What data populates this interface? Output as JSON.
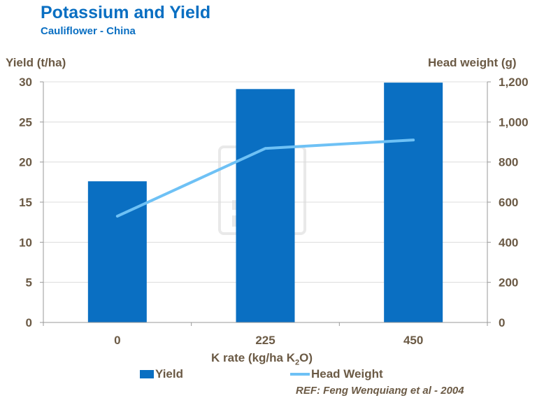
{
  "title": "Potassium and Yield",
  "subtitle": "Cauliflower - China",
  "reference": "REF: Feng Wenquiang et al - 2004",
  "colors": {
    "title": "#0a6fc2",
    "bar": "#0a6fc2",
    "line": "#6ec1f5",
    "text": "#6b5a45"
  },
  "chart_data": {
    "type": "bar",
    "title": "Potassium and Yield",
    "subtitle": "Cauliflower - China",
    "categories": [
      "0",
      "225",
      "450"
    ],
    "xlabel": {
      "main": "K rate (kg/ha K",
      "sub": "2",
      "end": "O)"
    },
    "ylabel": "Yield (t/ha)",
    "y2label": "Head weight (g)",
    "ylim": [
      0,
      30
    ],
    "y2lim": [
      0,
      1200
    ],
    "yticks": [
      "0",
      "5",
      "10",
      "15",
      "20",
      "25",
      "30"
    ],
    "y2ticks": [
      "0",
      "200",
      "400",
      "600",
      "800",
      "1,000",
      "1,200"
    ],
    "grid": true,
    "legend_position": "bottom",
    "series": [
      {
        "name": "Yield",
        "type": "bar",
        "axis": "left",
        "values": [
          17.6,
          29.1,
          29.9
        ]
      },
      {
        "name": "Head Weight",
        "type": "line",
        "axis": "right",
        "values": [
          530,
          868,
          910
        ]
      }
    ]
  }
}
